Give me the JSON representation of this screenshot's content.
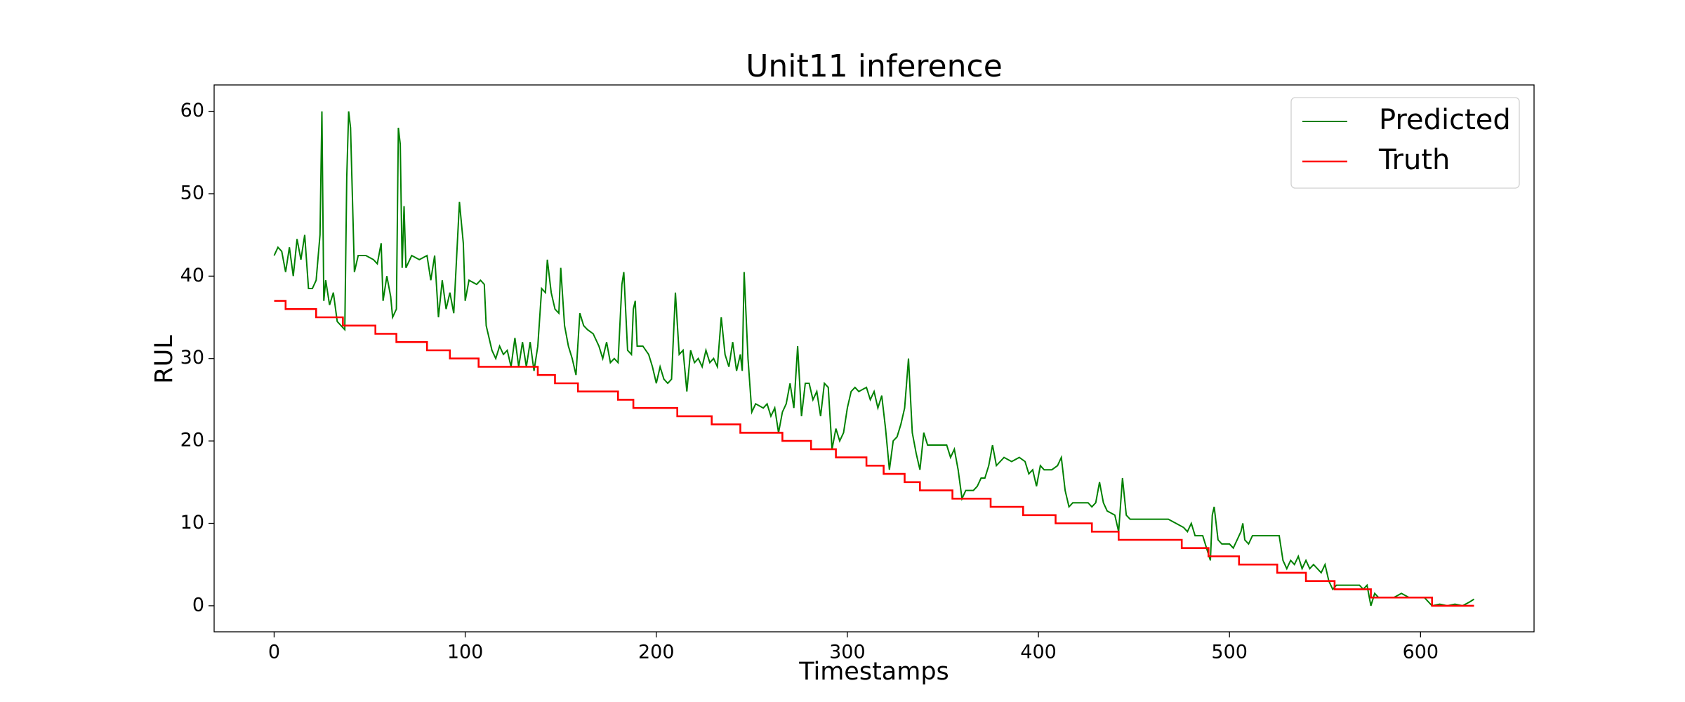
{
  "chart_data": {
    "type": "line",
    "title": "Unit11 inference",
    "x_label": "Timestamps",
    "y_label": "RUL",
    "xlim": [
      -31.4,
      659.4
    ],
    "ylim": [
      -3.16,
      63.2
    ],
    "xticks": [
      0,
      100,
      200,
      300,
      400,
      500,
      600
    ],
    "yticks": [
      0,
      10,
      20,
      30,
      40,
      50,
      60
    ],
    "grid": false,
    "legend": "upper right",
    "series": [
      {
        "name": "Predicted",
        "color": "#008000",
        "x": [
          0,
          2,
          4,
          6,
          8,
          10,
          12,
          14,
          16,
          18,
          20,
          22,
          24,
          25,
          26,
          27,
          29,
          31,
          33,
          35,
          37,
          38,
          39,
          40,
          42,
          44,
          48,
          52,
          54,
          56,
          57,
          59,
          61,
          62,
          64,
          65,
          66,
          67,
          68,
          69,
          72,
          76,
          80,
          82,
          84,
          86,
          88,
          90,
          92,
          94,
          97,
          99,
          100,
          102,
          106,
          108,
          110,
          111,
          114,
          116,
          118,
          120,
          122,
          124,
          126,
          128,
          130,
          132,
          134,
          136,
          138,
          140,
          142,
          143,
          145,
          147,
          149,
          150,
          152,
          154,
          156,
          158,
          160,
          162,
          164,
          167,
          170,
          172,
          174,
          176,
          178,
          180,
          182,
          183,
          185,
          187,
          188,
          189,
          190,
          193,
          196,
          198,
          200,
          202,
          204,
          206,
          208,
          210,
          212,
          214,
          216,
          218,
          220,
          222,
          224,
          226,
          228,
          230,
          232,
          234,
          236,
          238,
          240,
          242,
          244,
          245,
          246,
          248,
          250,
          252,
          256,
          258,
          260,
          262,
          264,
          266,
          268,
          270,
          272,
          274,
          276,
          278,
          280,
          282,
          284,
          286,
          288,
          290,
          292,
          294,
          296,
          298,
          300,
          302,
          304,
          306,
          310,
          312,
          314,
          316,
          318,
          320,
          322,
          324,
          326,
          328,
          330,
          332,
          334,
          336,
          338,
          340,
          342,
          344,
          348,
          352,
          354,
          356,
          358,
          360,
          362,
          366,
          368,
          370,
          372,
          374,
          376,
          378,
          380,
          382,
          386,
          390,
          393,
          395,
          397,
          399,
          401,
          403,
          407,
          410,
          412,
          414,
          416,
          418,
          422,
          426,
          428,
          430,
          432,
          434,
          436,
          440,
          442,
          444,
          446,
          448,
          452,
          456,
          460,
          464,
          468,
          472,
          476,
          478,
          480,
          482,
          486,
          488,
          490,
          491,
          492,
          494,
          496,
          500,
          502,
          504,
          506,
          507,
          508,
          510,
          512,
          516,
          520,
          524,
          526,
          528,
          530,
          532,
          534,
          536,
          538,
          540,
          542,
          544,
          546,
          548,
          550,
          552,
          554,
          556,
          560,
          564,
          568,
          570,
          572,
          574,
          576,
          578,
          582,
          586,
          590,
          594,
          598,
          602,
          604,
          606,
          610,
          614,
          618,
          622,
          626,
          628
        ],
        "values": [
          42.5,
          43.5,
          43,
          40.5,
          43.5,
          40,
          44.5,
          42,
          45,
          38.5,
          38.5,
          39.5,
          45,
          60,
          37,
          39.5,
          36.5,
          38,
          34.5,
          34,
          33.5,
          52,
          60,
          58,
          40.5,
          42.5,
          42.5,
          42,
          41.5,
          44,
          37,
          40,
          37.5,
          35,
          36,
          58,
          56,
          41,
          48.5,
          41,
          42.5,
          42,
          42.5,
          39.5,
          42.5,
          35,
          39.5,
          36,
          38,
          35.5,
          49,
          44,
          37,
          39.5,
          39,
          39.5,
          39,
          34,
          31,
          30,
          31.5,
          30.5,
          31,
          29,
          32.5,
          29,
          32,
          29,
          32,
          28.5,
          31.5,
          38.5,
          38,
          42,
          38,
          36,
          35.5,
          41,
          34,
          31.5,
          30,
          28,
          35.5,
          34,
          33.5,
          33,
          31.5,
          30,
          32,
          29.5,
          30,
          29.5,
          39,
          40.5,
          31,
          30.5,
          36,
          37,
          31.5,
          31.5,
          30.5,
          29,
          27,
          29,
          27.5,
          27,
          27.5,
          38,
          30.5,
          31,
          26,
          31,
          29.5,
          30,
          29,
          31,
          29.5,
          30,
          29,
          35,
          30.5,
          29,
          32,
          28.5,
          30.5,
          28.5,
          40.5,
          30,
          23.5,
          24.5,
          24,
          24.5,
          23,
          24,
          21,
          23.5,
          24.5,
          27,
          24,
          31.5,
          23,
          27,
          27,
          25,
          26,
          23,
          27,
          26.5,
          19,
          21.5,
          20,
          21,
          24,
          26,
          26.5,
          26,
          26.5,
          25,
          26,
          24,
          25.5,
          21.5,
          16.5,
          20,
          20.5,
          22,
          24,
          30,
          21,
          18.5,
          16.5,
          21,
          19.5,
          19.5,
          19.5,
          19.5,
          18,
          19,
          16.5,
          13,
          14,
          14,
          14.5,
          15.5,
          15.5,
          17,
          19.5,
          17,
          17.5,
          18,
          17.5,
          18,
          17.5,
          16,
          16.5,
          14.5,
          17,
          16.5,
          16.5,
          17,
          18,
          14,
          12,
          12.5,
          12.5,
          12.5,
          12,
          12.5,
          15,
          12.5,
          11.5,
          11,
          9,
          15.5,
          11,
          10.5,
          10.5,
          10.5,
          10.5,
          10.5,
          10.5,
          10,
          9.5,
          9,
          10,
          8.5,
          8.5,
          7,
          5.5,
          11,
          12,
          8,
          7.5,
          7.5,
          7,
          8,
          9,
          10,
          8,
          7.5,
          8.5,
          8.5,
          8.5,
          8.5,
          8.5,
          5.5,
          4.5,
          5.5,
          5,
          6,
          4.5,
          5.5,
          4.5,
          5,
          4.5,
          4,
          5,
          3,
          2,
          2.5,
          2.5,
          2.5,
          2.5,
          2,
          2.5,
          0,
          1.5,
          1,
          1,
          1,
          1.5,
          1,
          1,
          1,
          0.5,
          0,
          0.2,
          0,
          0.2,
          0,
          0.5,
          0.8
        ]
      },
      {
        "name": "Truth",
        "color": "#ff0000",
        "x": [
          0,
          6,
          6,
          22,
          22,
          36,
          36,
          53,
          53,
          64,
          64,
          80,
          80,
          92,
          92,
          107,
          107,
          138,
          138,
          147,
          147,
          159,
          159,
          180,
          180,
          188,
          188,
          211,
          211,
          229,
          229,
          244,
          244,
          266,
          266,
          281,
          281,
          294,
          294,
          310,
          310,
          319,
          319,
          330,
          330,
          338,
          338,
          355,
          355,
          375,
          375,
          392,
          392,
          409,
          409,
          428,
          428,
          442,
          442,
          475,
          475,
          489,
          489,
          505,
          505,
          525,
          525,
          540,
          540,
          555,
          555,
          574,
          574,
          606,
          606,
          628
        ],
        "values": [
          37,
          37,
          36,
          36,
          35,
          35,
          34,
          34,
          33,
          33,
          32,
          32,
          31,
          31,
          30,
          30,
          29,
          29,
          28,
          28,
          27,
          27,
          26,
          26,
          25,
          25,
          24,
          24,
          23,
          23,
          22,
          22,
          21,
          21,
          20,
          20,
          19,
          19,
          18,
          18,
          17,
          17,
          16,
          16,
          15,
          15,
          14,
          14,
          13,
          13,
          12,
          12,
          11,
          11,
          10,
          10,
          9,
          9,
          8,
          8,
          7,
          7,
          6,
          6,
          5,
          5,
          4,
          4,
          3,
          3,
          2,
          2,
          1,
          1,
          0,
          0
        ]
      }
    ]
  }
}
